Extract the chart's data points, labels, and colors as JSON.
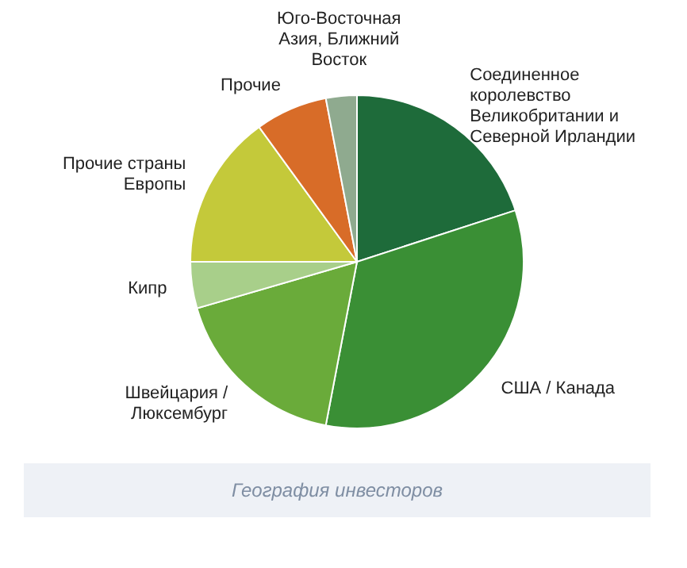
{
  "chart_data": {
    "type": "pie",
    "categories": [
      "Соединенное королевство Великобритании и Северной Ирландии",
      "США / Канада",
      "Швейцария / Люксембург",
      "Кипр",
      "Прочие страны Европы",
      "Прочие",
      "Юго-Восточная Азия, Ближний Восток"
    ],
    "values": [
      20,
      33,
      17.5,
      4.5,
      15,
      7,
      3
    ],
    "colors": [
      "#1e6b3a",
      "#3a8f35",
      "#6aab3a",
      "#a8cf8a",
      "#c4c93a",
      "#d86c28",
      "#8faa8f"
    ],
    "legend": false,
    "annotations": [
      "География инвесторов"
    ]
  }
}
